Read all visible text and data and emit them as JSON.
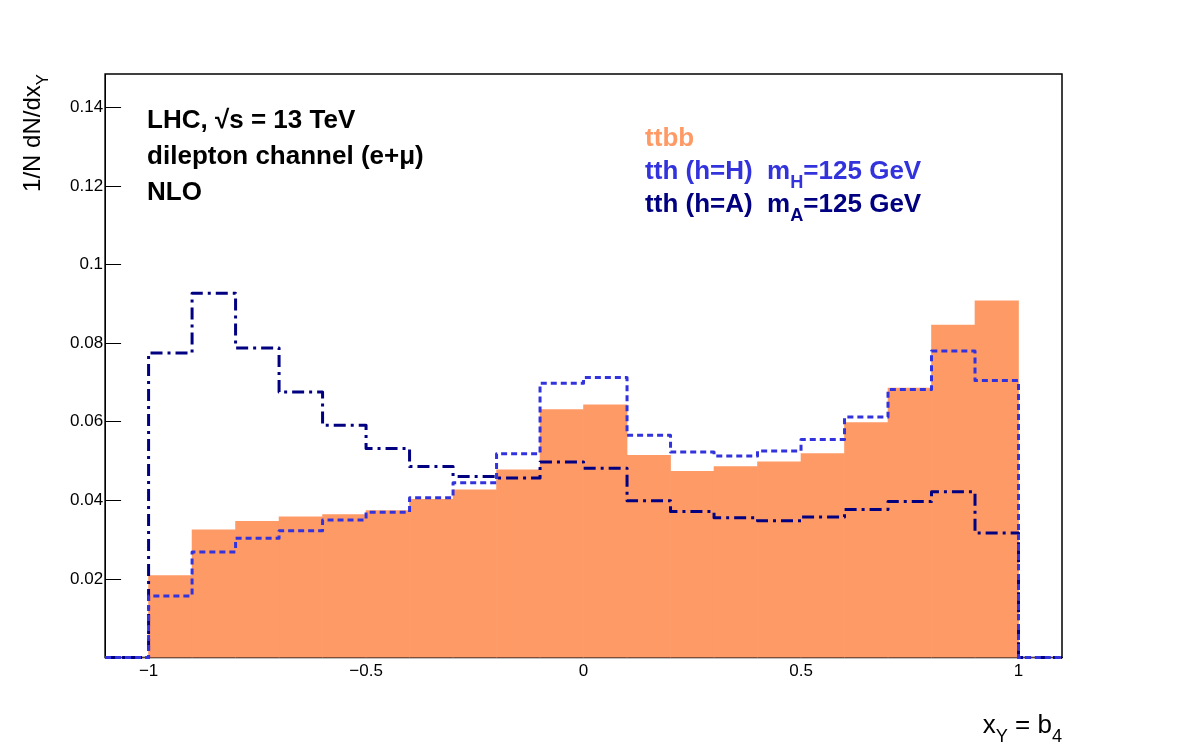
{
  "chart_data": {
    "type": "histogram",
    "xlabel": "x$_{Y}$ = b$_{4}$",
    "ylabel": "1/N dN/dx$_{Y}$",
    "bins": [
      -1.1,
      -1,
      -0.9,
      -0.8,
      -0.7,
      -0.6,
      -0.5,
      -0.4,
      -0.3,
      -0.2,
      -0.1,
      0,
      0.1,
      0.2,
      0.3,
      0.4,
      0.5,
      0.6,
      0.7,
      0.8,
      0.9,
      1,
      1.1
    ],
    "series": [
      {
        "name": "ttbb",
        "color": "#fe9a66",
        "values": [
          0,
          0.0209,
          0.0325,
          0.0347,
          0.0358,
          0.0364,
          0.0374,
          0.0403,
          0.0427,
          0.0478,
          0.0631,
          0.0643,
          0.0515,
          0.0474,
          0.0486,
          0.0498,
          0.0519,
          0.0598,
          0.0686,
          0.0846,
          0.0908,
          0
        ]
      },
      {
        "name": "tth (h=H)  m$_{H}$=125 GeV",
        "color": "#3333dd",
        "type": "step",
        "line_style": "dashed",
        "x": [
          -1.1,
          -1,
          -0.9,
          -0.8,
          -0.7,
          -0.6,
          -0.5,
          -0.4,
          -0.3,
          -0.2,
          -0.1,
          0,
          0.1,
          0.2,
          0.3,
          0.4,
          0.5,
          0.6,
          0.7,
          0.8,
          0.9,
          1,
          1.1
        ],
        "values": [
          0,
          0.0157,
          0.0269,
          0.0304,
          0.0323,
          0.035,
          0.037,
          0.0407,
          0.0445,
          0.0519,
          0.0698,
          0.0713,
          0.0566,
          0.0523,
          0.0513,
          0.0526,
          0.0555,
          0.0612,
          0.0682,
          0.078,
          0.0705,
          0,
          0
        ]
      },
      {
        "name": "tth (h=A)  m$_{A}$=125 GeV",
        "color": "#000080",
        "type": "step",
        "line_style": "dashdot",
        "x": [
          -1.1,
          -1,
          -0.9,
          -0.8,
          -0.7,
          -0.6,
          -0.5,
          -0.4,
          -0.3,
          -0.2,
          -0.1,
          0,
          0.1,
          0.2,
          0.3,
          0.4,
          0.5,
          0.6,
          0.7,
          0.8,
          0.9,
          1,
          1.1
        ],
        "values": [
          0,
          0.0775,
          0.0927,
          0.0788,
          0.0676,
          0.0591,
          0.0532,
          0.0486,
          0.0461,
          0.0457,
          0.0498,
          0.0482,
          0.0399,
          0.0372,
          0.0356,
          0.0348,
          0.0358,
          0.0377,
          0.0397,
          0.0422,
          0.0317,
          0,
          0
        ]
      }
    ],
    "xlim": [
      -1.1,
      1.1
    ],
    "xticks": [
      -1,
      -0.5,
      0,
      0.5,
      1
    ],
    "ylim": [
      0,
      0.1485
    ],
    "yticks": [
      0.02,
      0.04,
      0.06,
      0.08,
      0.1,
      0.12,
      0.14
    ],
    "legend": "top right",
    "marker": "none",
    "grid": false,
    "annotations": [
      "LHC, √s = 13 TeV",
      "dilepton channel (e+μ)",
      "NLO"
    ]
  }
}
